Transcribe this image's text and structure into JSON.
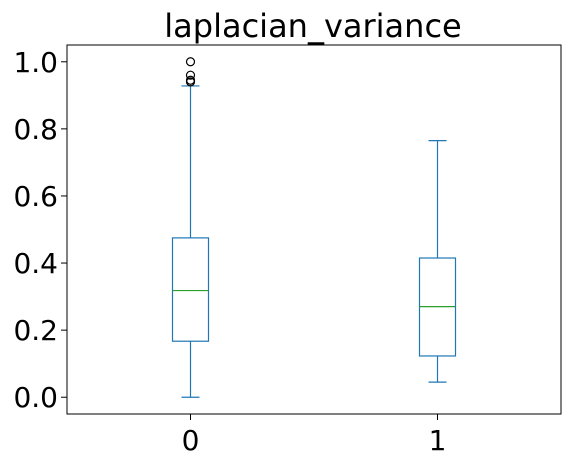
{
  "chart_data": {
    "type": "box",
    "title": "laplacian_variance",
    "xlabel": "",
    "ylabel": "",
    "categories": [
      "0",
      "1"
    ],
    "ylim": [
      -0.05,
      1.05
    ],
    "yticks": [
      0.0,
      0.2,
      0.4,
      0.6,
      0.8,
      1.0
    ],
    "ytick_labels": [
      "0.0",
      "0.2",
      "0.4",
      "0.6",
      "0.8",
      "1.0"
    ],
    "grid": false,
    "boxes": [
      {
        "category": "0",
        "whisker_low": 0.0,
        "q1": 0.167,
        "median": 0.318,
        "q3": 0.475,
        "whisker_high": 0.928,
        "outliers": [
          0.94,
          0.945,
          0.96,
          1.0
        ]
      },
      {
        "category": "1",
        "whisker_low": 0.045,
        "q1": 0.123,
        "median": 0.27,
        "q3": 0.415,
        "whisker_high": 0.765,
        "outliers": []
      }
    ],
    "colors": {
      "box": "#1f77b4",
      "median": "#2ca02c",
      "outlier": "#000000",
      "axes": "#000000"
    }
  }
}
